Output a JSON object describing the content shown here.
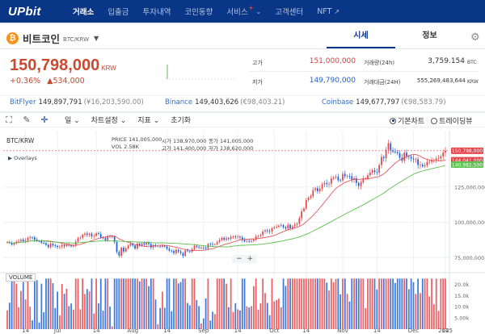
{
  "nav": {
    "logo": "UPbit",
    "items": [
      {
        "label": "거래소",
        "active": true
      },
      {
        "label": "입출금"
      },
      {
        "label": "투자내역"
      },
      {
        "label": "코인동향"
      },
      {
        "label": "서비스",
        "sup": "+"
      },
      {
        "label": "고객센터"
      },
      {
        "label": "NFT"
      }
    ]
  },
  "coin": {
    "symbol_icon": "₿",
    "name": "비트코인",
    "pair": "BTC/KRW",
    "price": "150,798,000",
    "price_unit": "KRW",
    "change_pct": "+0.36%",
    "change_abs": "▲534,000"
  },
  "tabs": [
    "시세",
    "정보"
  ],
  "stats": {
    "high_label": "고가",
    "high_value": "151,000,000",
    "low_label": "저가",
    "low_value": "149,790,000",
    "volume_label": "거래량(24h)",
    "volume_value": "3,759.154",
    "volume_unit": "BTC",
    "amount_label": "거래대금(24H)",
    "amount_value": "555,269,483,644",
    "amount_unit": "KRW"
  },
  "exchanges": [
    {
      "name": "BitFlyer",
      "value": "149,897,791",
      "krw": "(¥16,203,590.00)"
    },
    {
      "name": "Binance",
      "value": "149,403,626",
      "krw": "(€98,403.21)"
    },
    {
      "name": "Coinbase",
      "value": "149,677,797",
      "krw": "(€98,583.79)"
    }
  ],
  "toolbar": {
    "period": "일",
    "chart_settings": "차트설정",
    "indicator": "지표",
    "reset": "초기화",
    "basic_chart": "기본차트",
    "trading_view": "트레이딩뷰"
  },
  "legend": {
    "symbol": "BTC/KRW",
    "overlays": "Overlays",
    "price_label": "PRICE",
    "price_value": "141,005,000",
    "open_label": "시가",
    "open_value": "138,970,000",
    "close_label": "종가",
    "close_value": "141,005,000",
    "vol_label": "VOL",
    "vol_value": "2.58K",
    "high_label": "고가",
    "high_value": "141,400,000",
    "low_label": "저가",
    "low_value": "138,620,000"
  },
  "volume_panel_label": "VOLUME",
  "zoom": {
    "minus": "−",
    "plus": "+"
  },
  "chart_data": {
    "type": "candlestick",
    "x_tick_labels": [
      "14",
      "Jul",
      "14",
      "Aug",
      "14",
      "Sep",
      "14",
      "Oct",
      "14",
      "Nov",
      "14",
      "Dec",
      "14",
      "2025"
    ],
    "y_tick_labels": [
      "125,000,000",
      "100,000,000",
      "75,000,000"
    ],
    "y_ticks": [
      125000000,
      100000000,
      75000000
    ],
    "ylim": [
      66000000,
      165000000
    ],
    "volume_tick_labels": [
      "20.0k",
      "15.0k",
      "10.0k",
      "5.00k"
    ],
    "volume_ticks": [
      20000,
      15000,
      10000,
      5000
    ],
    "volume_ylim": [
      0,
      23000
    ],
    "price_tags": [
      {
        "value": "150,798,000",
        "price": 150798000,
        "color": "#e5454a"
      },
      {
        "value": "144,041,000",
        "price": 144041000,
        "color": "#e5454a"
      },
      {
        "value": "140,982,500",
        "price": 140982500,
        "color": "#5bbf4d"
      }
    ],
    "series": [
      {
        "name": "candles",
        "closes": [
          86000000,
          85400000,
          84200000,
          85300000,
          86300000,
          86800000,
          87700000,
          86600000,
          87200000,
          88900000,
          89400000,
          89300000,
          87800000,
          86700000,
          86600000,
          85500000,
          85200000,
          84000000,
          82400000,
          84800000,
          83700000,
          83300000,
          82500000,
          82800000,
          83900000,
          83100000,
          84000000,
          83600000,
          83000000,
          83400000,
          86300000,
          88800000,
          89100000,
          91200000,
          92000000,
          91100000,
          91900000,
          90100000,
          90400000,
          92200000,
          91700000,
          89200000,
          88800000,
          87300000,
          90300000,
          89900000,
          89900000,
          86000000,
          79000000,
          76300000,
          82000000,
          79300000,
          81500000,
          83500000,
          84900000,
          83600000,
          81400000,
          84900000,
          83800000,
          85100000,
          84200000,
          85600000,
          84600000,
          82200000,
          83700000,
          83000000,
          83000000,
          82600000,
          83400000,
          82900000,
          81300000,
          80000000,
          79700000,
          78200000,
          80500000,
          79400000,
          78300000,
          76200000,
          80100000,
          79500000,
          79000000,
          81000000,
          83300000,
          82600000,
          82100000,
          82100000,
          82000000,
          81400000,
          84700000,
          84600000,
          84300000,
          84500000,
          85900000,
          87500000,
          88900000,
          87700000,
          88700000,
          88200000,
          89700000,
          90000000,
          89500000,
          89800000,
          89400000,
          87600000,
          86400000,
          86800000,
          86300000,
          86800000,
          87800000,
          90100000,
          90400000,
          91000000,
          93500000,
          94300000,
          93800000,
          93500000,
          95700000,
          96300000,
          96900000,
          97500000,
          98000000,
          96500000,
          95500000,
          98200000,
          95800000,
          97100000,
          98300000,
          99100000,
          102900000,
          107900000,
          109800000,
          115800000,
          117500000,
          118500000,
          122900000,
          124200000,
          122100000,
          123900000,
          127000000,
          127900000,
          127100000,
          127400000,
          131100000,
          131800000,
          132300000,
          129900000,
          129800000,
          134400000,
          132800000,
          132800000,
          132700000,
          130200000,
          131200000,
          128000000,
          125800000,
          128300000,
          131100000,
          131100000,
          133400000,
          135300000,
          136900000,
          135600000,
          135200000,
          140600000,
          146400000,
          145500000,
          151500000,
          156000000,
          151000000,
          150100000,
          149900000,
          149000000,
          145900000,
          143700000,
          149400000,
          146900000,
          146500000,
          145300000,
          144700000,
          144700000,
          140700000,
          140900000,
          139700000,
          140400000,
          142700000,
          143000000,
          144000000,
          144100000,
          145300000,
          145400000,
          146800000,
          149500000,
          150798000
        ]
      },
      {
        "name": "short moving average",
        "color": "#e5454a"
      },
      {
        "name": "long moving average",
        "color": "#5bbf4d"
      }
    ]
  },
  "colors": {
    "up": "#e5454a",
    "down": "#1c61d8",
    "nav_bg": "#093687",
    "accent": "#c84a31"
  }
}
